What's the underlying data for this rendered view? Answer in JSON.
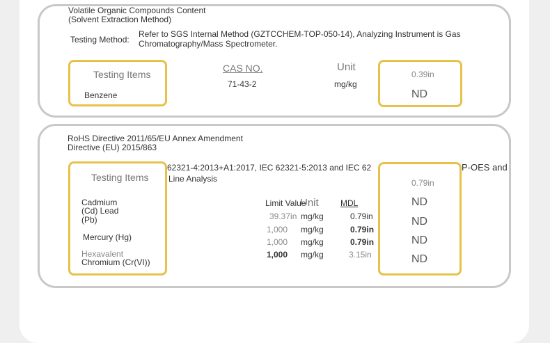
{
  "voc": {
    "title_line1": "Volatile Organic Compounds Content",
    "title_line2": "(Solvent Extraction Method)",
    "method_label": "Testing Method:",
    "method_line1": "Refer to SGS Internal Method (GZTCCHEM-TOP-050-14), Analyzing Instrument is Gas",
    "method_line2": "Chromatography/Mass Spectrometer.",
    "col_items": "Testing Items",
    "col_cas": "CAS NO.",
    "col_unit": "Unit",
    "col_mdl": "0.39in",
    "item_name": "Benzene",
    "item_cas": "71-43-2",
    "item_unit": "mg/kg",
    "item_result": "ND"
  },
  "rohs": {
    "title_line1": "RoHS Directive 2011/65/EU Annex Amendment",
    "title_line2": "Directive (EU) 2015/863",
    "method_mid": "62321-4:2013+A1:2017, IEC 62321-5:2013 and IEC 62",
    "method_right": "P-OES and",
    "method_line2": "Line Analysis",
    "col_items": "Testing Items",
    "col_limit": "Limit Value",
    "col_unit": "Unit",
    "col_mdl": "MDL",
    "col_mdl_in": "0.79in",
    "items": [
      {
        "name1": "Cadmium",
        "name2": "(Cd) Lead",
        "name3": "(Pb)",
        "limit": "39.37in",
        "unit": "mg/kg",
        "mdl": "0.79in",
        "result": "ND"
      },
      {
        "name1": "Mercury (Hg)",
        "limit": "1,000",
        "unit": "mg/kg",
        "mdl": "0.79in",
        "result": "ND"
      },
      {
        "name1": "Hexavalent",
        "name2": "Chromium (Cr(VI))",
        "limit": "1,000",
        "unit": "mg/kg",
        "mdl": "0.79in",
        "result": "ND"
      },
      {
        "limit": "1,000",
        "unit": "mg/kg",
        "mdl": "3.15in",
        "result": "ND"
      }
    ]
  }
}
